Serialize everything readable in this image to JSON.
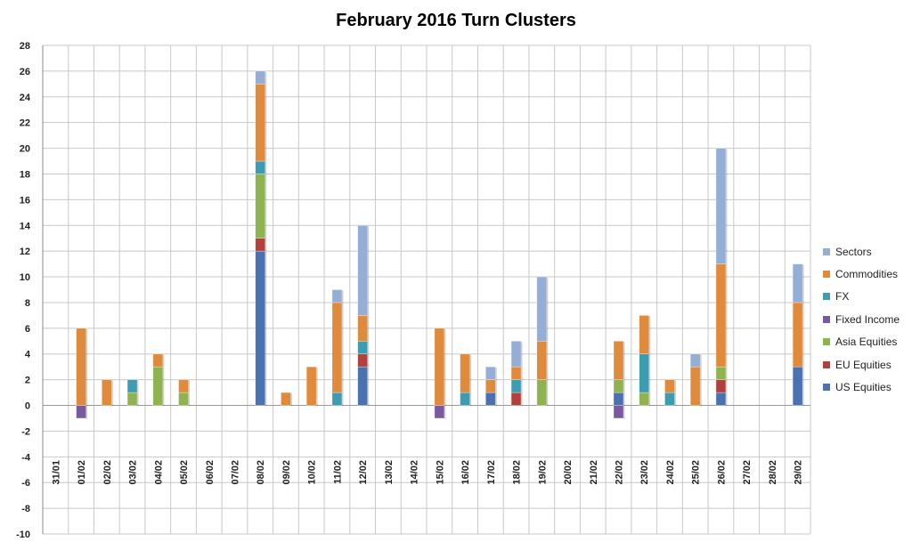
{
  "chart_data": {
    "type": "bar",
    "stacked": true,
    "title": "February 2016 Turn Clusters",
    "xlabel": "",
    "ylabel": "",
    "ylim": [
      -10,
      28
    ],
    "ytick_step": 2,
    "grid": true,
    "legend_position": "right",
    "categories": [
      "31/01",
      "01/02",
      "02/02",
      "03/02",
      "04/02",
      "05/02",
      "06/02",
      "07/02",
      "08/02",
      "09/02",
      "10/02",
      "11/02",
      "12/02",
      "13/02",
      "14/02",
      "15/02",
      "16/02",
      "17/02",
      "18/02",
      "19/02",
      "20/02",
      "21/02",
      "22/02",
      "23/02",
      "24/02",
      "25/02",
      "26/02",
      "27/02",
      "28/02",
      "29/02"
    ],
    "series": [
      {
        "name": "US Equities",
        "color": "#4a72b0",
        "values": [
          0,
          0,
          0,
          0,
          0,
          0,
          0,
          0,
          12,
          0,
          0,
          0,
          3,
          0,
          0,
          0,
          0,
          1,
          0,
          0,
          0,
          0,
          1,
          0,
          0,
          0,
          1,
          0,
          0,
          3
        ]
      },
      {
        "name": "EU Equities",
        "color": "#b2413e",
        "values": [
          0,
          0,
          0,
          0,
          0,
          0,
          0,
          0,
          1,
          0,
          0,
          0,
          1,
          0,
          0,
          0,
          0,
          0,
          1,
          0,
          0,
          0,
          0,
          0,
          0,
          0,
          1,
          0,
          0,
          0
        ]
      },
      {
        "name": "Asia Equities",
        "color": "#8fb34f",
        "values": [
          0,
          0,
          0,
          1,
          3,
          1,
          0,
          0,
          5,
          0,
          0,
          0,
          0,
          0,
          0,
          0,
          0,
          0,
          0,
          2,
          0,
          0,
          1,
          1,
          0,
          0,
          1,
          0,
          0,
          0
        ]
      },
      {
        "name": "Fixed Income",
        "color": "#7a5a9e",
        "values": [
          0,
          -1,
          0,
          0,
          0,
          0,
          0,
          0,
          0,
          0,
          0,
          0,
          0,
          0,
          0,
          -1,
          0,
          0,
          0,
          0,
          0,
          0,
          -1,
          0,
          0,
          0,
          0,
          0,
          0,
          0
        ]
      },
      {
        "name": "FX",
        "color": "#3c9cb2",
        "values": [
          0,
          0,
          0,
          1,
          0,
          0,
          0,
          0,
          1,
          0,
          0,
          1,
          1,
          0,
          0,
          0,
          1,
          0,
          1,
          0,
          0,
          0,
          0,
          3,
          1,
          0,
          0,
          0,
          0,
          0
        ]
      },
      {
        "name": "Commodities",
        "color": "#e08a3c",
        "values": [
          0,
          6,
          2,
          0,
          1,
          1,
          0,
          0,
          6,
          1,
          3,
          7,
          2,
          0,
          0,
          6,
          3,
          1,
          1,
          3,
          0,
          0,
          3,
          3,
          1,
          3,
          8,
          0,
          0,
          5
        ]
      },
      {
        "name": "Sectors",
        "color": "#94aed6",
        "values": [
          0,
          0,
          0,
          0,
          0,
          0,
          0,
          0,
          1,
          0,
          0,
          1,
          7,
          0,
          0,
          0,
          0,
          1,
          2,
          5,
          0,
          0,
          0,
          0,
          0,
          1,
          9,
          0,
          0,
          3
        ]
      }
    ]
  }
}
